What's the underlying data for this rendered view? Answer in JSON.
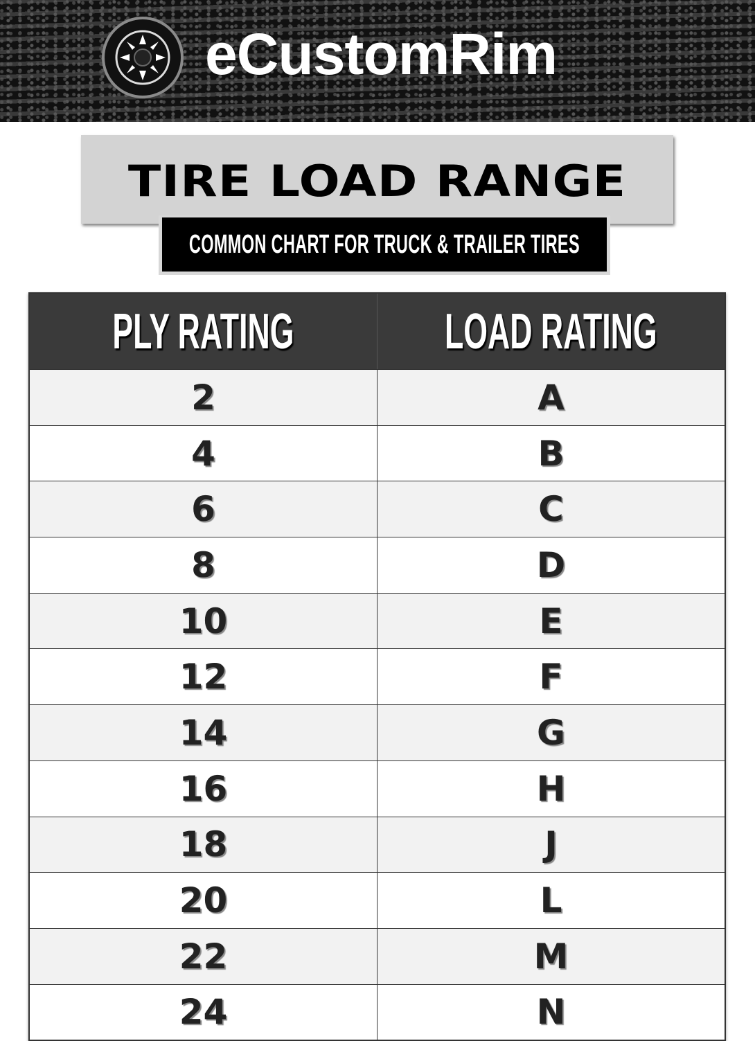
{
  "brand": {
    "name": "eCustomRim",
    "logo_icon": "wheel-icon"
  },
  "header": {
    "title": "TIRE LOAD RANGE",
    "subtitle": "COMMON CHART FOR TRUCK & TRAILER TIRES"
  },
  "table": {
    "columns": [
      "PLY RATING",
      "LOAD RATING"
    ],
    "rows": [
      [
        "2",
        "A"
      ],
      [
        "4",
        "B"
      ],
      [
        "6",
        "C"
      ],
      [
        "8",
        "D"
      ],
      [
        "10",
        "E"
      ],
      [
        "12",
        "F"
      ],
      [
        "14",
        "G"
      ],
      [
        "16",
        "H"
      ],
      [
        "18",
        "J"
      ],
      [
        "20",
        "L"
      ],
      [
        "22",
        "M"
      ],
      [
        "24",
        "N"
      ]
    ]
  },
  "colors": {
    "header_bg": "#3a3a3a",
    "title_box": "#d3d3d3",
    "row_alt": "#f2f2f2"
  }
}
